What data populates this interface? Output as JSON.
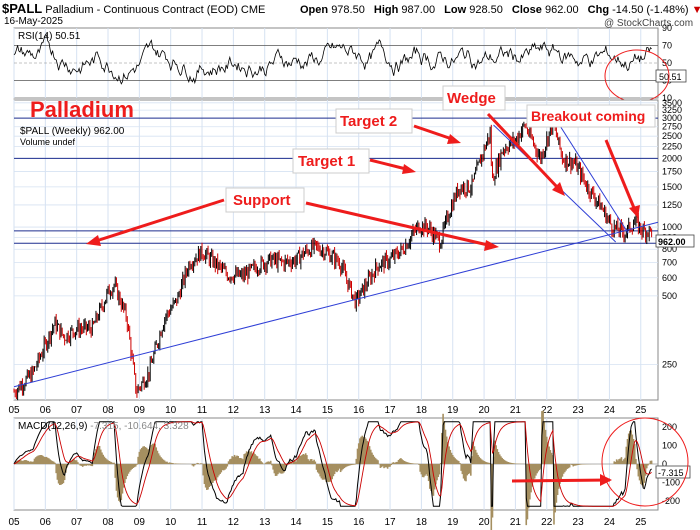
{
  "header": {
    "symbol": "$PALL",
    "description": "Palladium - Continuous Contract (EOD)",
    "exchange": "CME",
    "date": "16-May-2025",
    "open_label": "Open",
    "open": "978.50",
    "high_label": "High",
    "high": "987.00",
    "low_label": "Low",
    "low": "928.50",
    "close_label": "Close",
    "close": "962.00",
    "chg_label": "Chg",
    "chg": "-14.50 (-1.48%)",
    "watermark": "@ StockCharts.com"
  },
  "rsi": {
    "legend": "RSI(14) 50.51",
    "value_label": "50.51",
    "ticks": [
      "90",
      "70",
      "50",
      "30",
      "10"
    ]
  },
  "price": {
    "legend_line1": "$PALL (Weekly) 962.00",
    "legend_line2": "Volume undef",
    "value_label": "962.00",
    "ticks": [
      "3500",
      "3250",
      "3000",
      "2750",
      "2500",
      "2250",
      "2000",
      "1750",
      "1500",
      "1250",
      "1000",
      "900",
      "800",
      "700",
      "600",
      "500",
      "250"
    ]
  },
  "macd": {
    "legend": "MACD(12,26,9)",
    "legend_values": "-7.315, -10.644, 3.328",
    "value_label": "-7.315",
    "ticks": [
      "200",
      "100",
      "0",
      "-100",
      "-200"
    ]
  },
  "years": [
    "05",
    "06",
    "07",
    "08",
    "09",
    "10",
    "11",
    "12",
    "13",
    "14",
    "15",
    "16",
    "17",
    "18",
    "19",
    "20",
    "21",
    "22",
    "23",
    "24",
    "25"
  ],
  "annotations": {
    "title": "Palladium",
    "support": "Support",
    "target1": "Target 1",
    "target2": "Target 2",
    "wedge": "Wedge",
    "breakout": "Breakout coming"
  },
  "colors": {
    "annotation": "#ee1c1c",
    "grid": "#d6e2f2",
    "trendline": "#2f3fd6",
    "up_bar": "#000000",
    "down_bar": "#cc0000",
    "macd_line": "#000000",
    "signal_line": "#cc0000",
    "histogram": "#a58f60"
  },
  "chart_data": [
    {
      "type": "line",
      "title": "$PALL Palladium - Continuous Contract (EOD), Weekly",
      "scale": "log",
      "x_label_years": [
        "05",
        "06",
        "07",
        "08",
        "09",
        "10",
        "11",
        "12",
        "13",
        "14",
        "15",
        "16",
        "17",
        "18",
        "19",
        "20",
        "21",
        "22",
        "23",
        "24",
        "25"
      ],
      "ylim": [
        200,
        3500
      ],
      "series": [
        {
          "name": "$PALL (Weekly)",
          "x": [
            2005.0,
            2005.6,
            2006.3,
            2006.6,
            2007.0,
            2007.5,
            2008.0,
            2008.2,
            2008.6,
            2008.9,
            2009.3,
            2009.8,
            2010.2,
            2010.6,
            2011.0,
            2011.4,
            2011.8,
            2012.3,
            2012.8,
            2013.2,
            2013.6,
            2014.0,
            2014.3,
            2014.6,
            2014.9,
            2015.4,
            2015.9,
            2016.2,
            2016.6,
            2017.0,
            2017.4,
            2017.9,
            2018.2,
            2018.6,
            2018.9,
            2019.2,
            2019.6,
            2019.9,
            2020.2,
            2020.25,
            2020.6,
            2021.0,
            2021.3,
            2021.8,
            2022.2,
            2022.5,
            2022.9,
            2023.3,
            2023.7,
            2024.1,
            2024.5,
            2024.8,
            2025.1,
            2025.37
          ],
          "y": [
            190,
            230,
            380,
            330,
            360,
            360,
            520,
            560,
            400,
            190,
            230,
            400,
            480,
            700,
            780,
            700,
            620,
            610,
            680,
            720,
            700,
            720,
            780,
            820,
            790,
            700,
            470,
            550,
            680,
            720,
            800,
            1010,
            1000,
            860,
            1180,
            1500,
            1500,
            2000,
            2600,
            1600,
            2200,
            2400,
            2800,
            2000,
            2900,
            2000,
            1900,
            1500,
            1250,
            1000,
            950,
            1050,
            960,
            962
          ]
        }
      ],
      "annotations": [
        "Palladium",
        "Support",
        "Target 1",
        "Target 2",
        "Wedge",
        "Breakout coming"
      ],
      "horizontal_levels": [
        3000,
        2000,
        962,
        850
      ],
      "last_value": 962.0
    },
    {
      "type": "line",
      "title": "RSI(14)",
      "ylim": [
        10,
        90
      ],
      "reference_levels": [
        70,
        30
      ],
      "last_value": 50.51
    },
    {
      "type": "line",
      "title": "MACD(12,26,9)",
      "ylim": [
        -250,
        250
      ],
      "series": [
        {
          "name": "MACD",
          "last_value": -7.315
        },
        {
          "name": "Signal",
          "last_value": -10.644
        },
        {
          "name": "Histogram",
          "last_value": 3.328
        }
      ]
    }
  ]
}
